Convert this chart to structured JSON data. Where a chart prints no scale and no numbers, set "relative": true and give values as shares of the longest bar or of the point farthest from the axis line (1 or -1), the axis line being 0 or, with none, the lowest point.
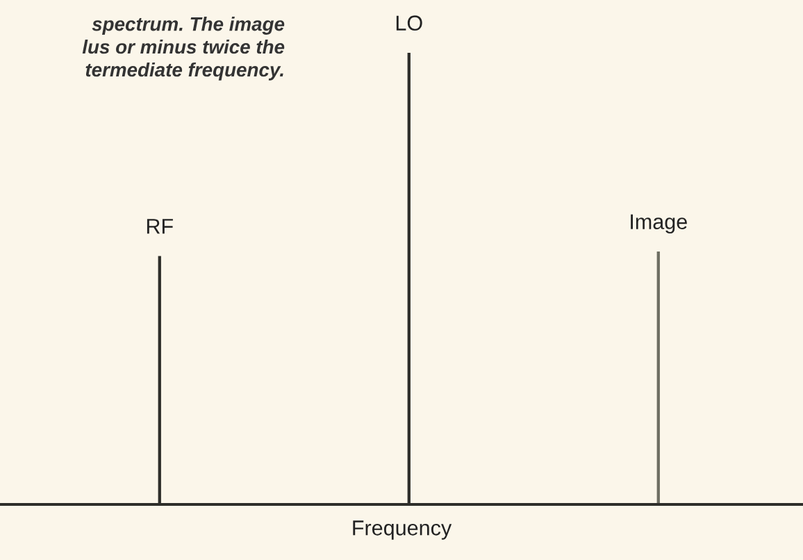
{
  "chart_data": {
    "type": "bar",
    "relative": true,
    "xlabel": "Frequency",
    "categories": [
      "RF",
      "LO",
      "Image"
    ],
    "values": [
      0.55,
      1,
      0.56
    ],
    "colors": [
      "#2e2e2a",
      "#2e2e2a",
      "#6e6e62"
    ],
    "annotations": [
      "spectrum. The image\nlus or minus twice the\ntermediate frequency."
    ]
  }
}
